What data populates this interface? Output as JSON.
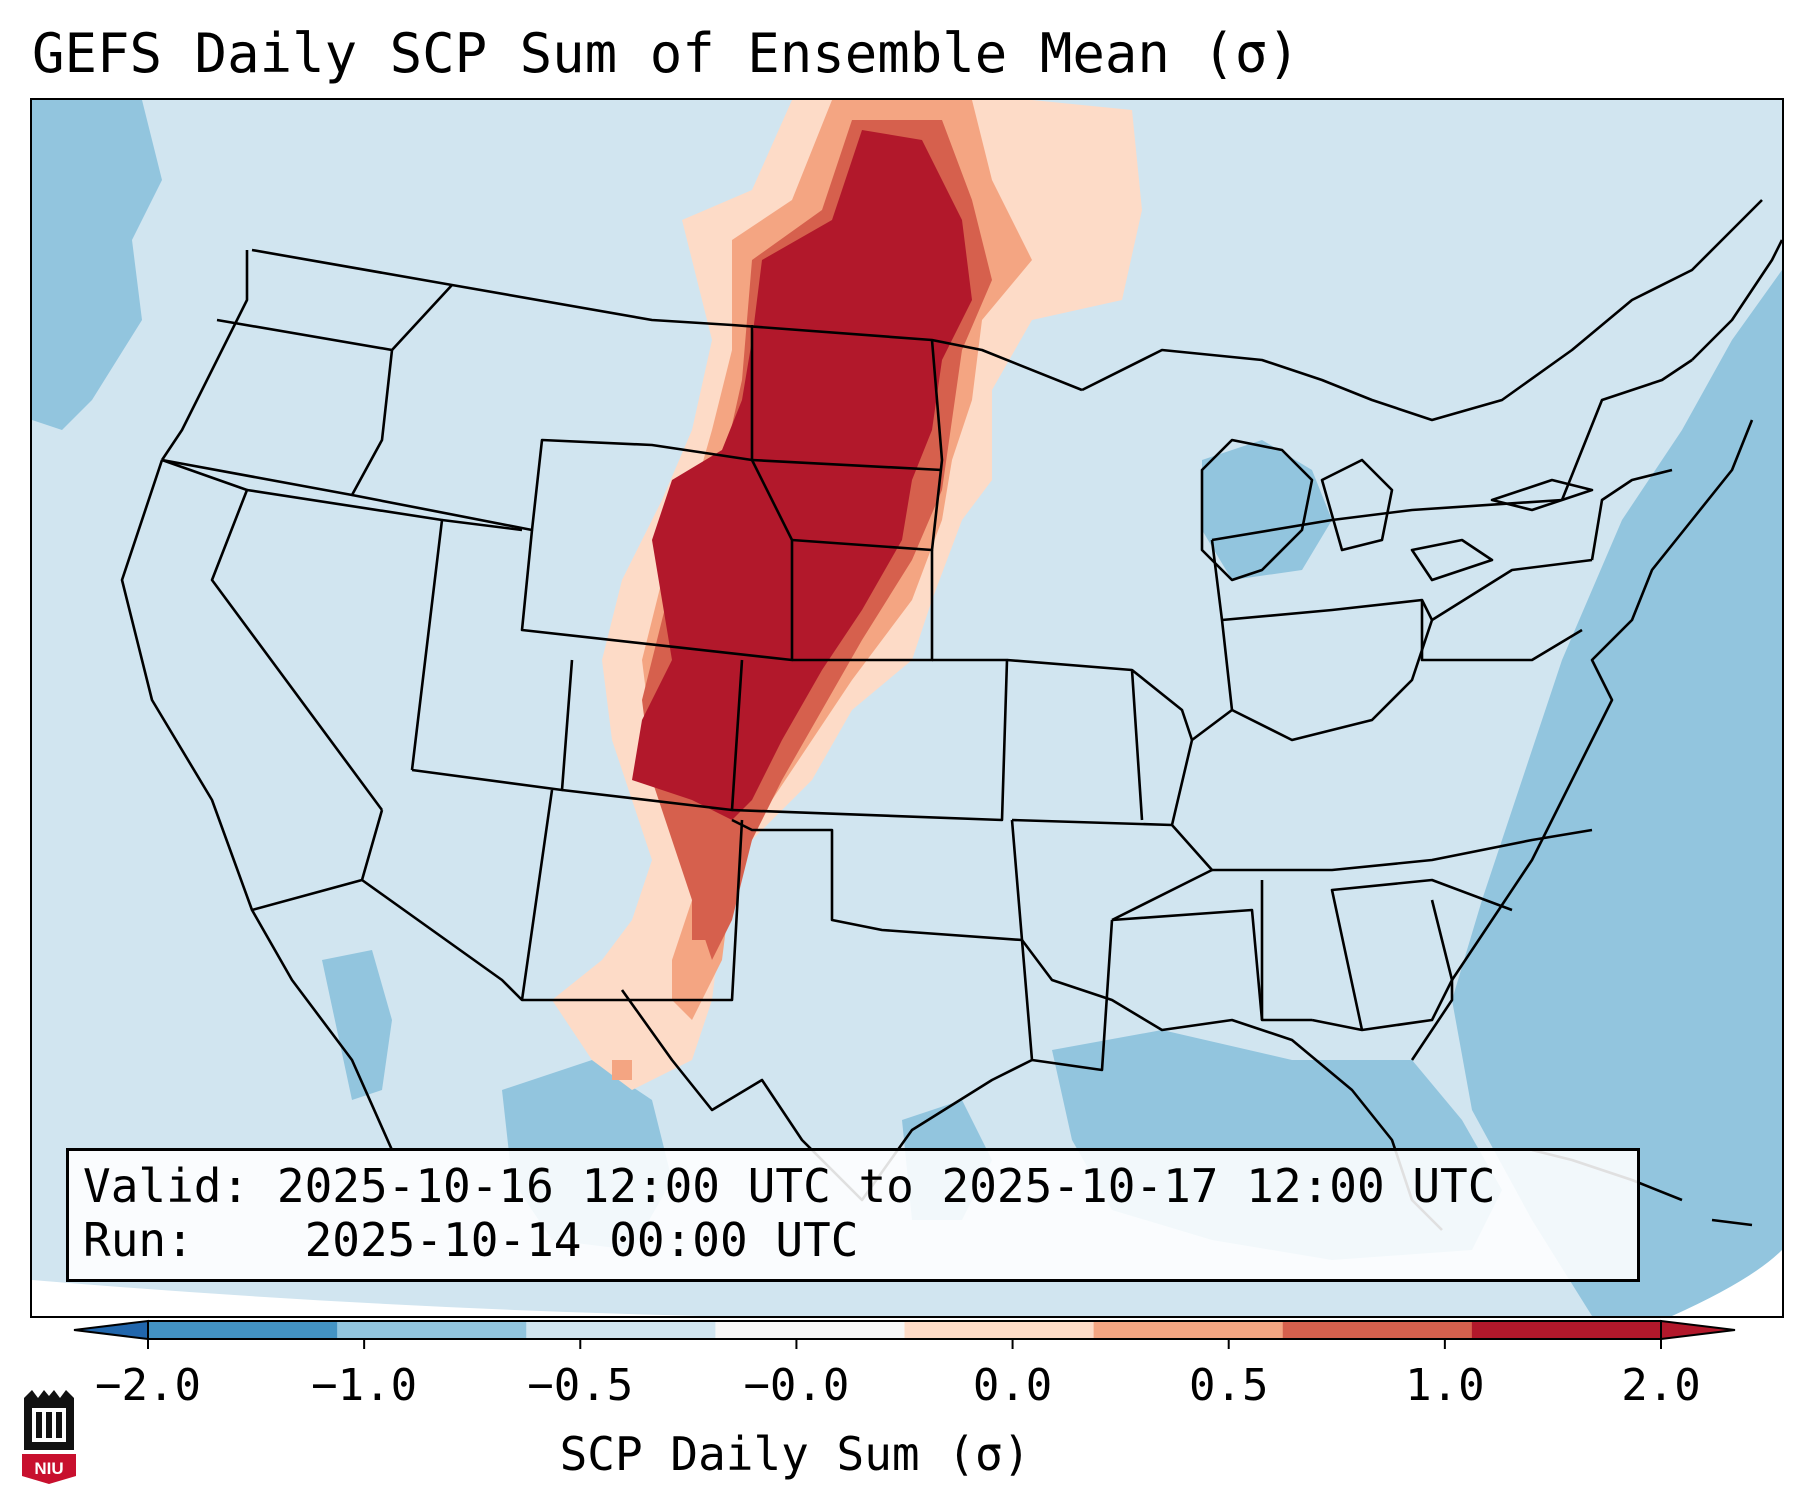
{
  "title": "GEFS Daily SCP Sum of Ensemble Mean (σ)",
  "info": {
    "valid_label": "Valid:",
    "valid_value": "2025-10-16 12:00 UTC to 2025-10-17 12:00 UTC",
    "run_label": "Run:",
    "run_value": "2025-10-14 00:00 UTC"
  },
  "colorbar": {
    "label": "SCP Daily Sum (σ)",
    "ticks": [
      "−2.0",
      "−1.0",
      "−0.5",
      "−0.0",
      "0.0",
      "0.5",
      "1.0",
      "2.0"
    ],
    "colors": [
      "#4393c3",
      "#92c5de",
      "#d1e5f0",
      "#f7f7f7",
      "#fddbc7",
      "#f4a582",
      "#d6604d",
      "#b2182b"
    ],
    "extend_low_color": "#2166ac",
    "extend_high_color": "#b2182b"
  },
  "map": {
    "background_color": "#d1e5f0",
    "ocean_light_color": "#92c5de",
    "border_color": "#000000"
  },
  "logo": {
    "text": "NIU"
  }
}
